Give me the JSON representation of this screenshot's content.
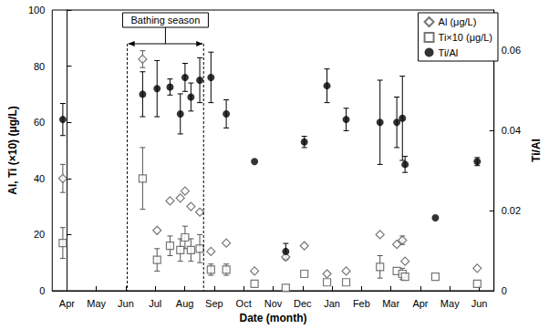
{
  "chart_data": {
    "type": "scatter",
    "x_label": "Date (month)",
    "y_label": "Al, Ti (×10) (μg/L)",
    "y2_label": "Ti/Al",
    "x": [
      -0.14,
      2.57,
      3.06,
      3.5,
      3.85,
      4.01,
      4.21,
      4.51,
      4.89,
      5.41,
      6.37,
      7.43,
      8.06,
      8.83,
      9.48,
      10.63,
      11.2,
      11.39,
      11.48,
      12.51,
      13.93
    ],
    "xlim": [
      -0.5,
      14.5
    ],
    "xticks": [
      {
        "value": 0,
        "label": "Apr"
      },
      {
        "value": 1,
        "label": "May"
      },
      {
        "value": 2,
        "label": "Jun"
      },
      {
        "value": 3,
        "label": "Jul"
      },
      {
        "value": 4,
        "label": "Aug"
      },
      {
        "value": 5,
        "label": "Sep"
      },
      {
        "value": 6,
        "label": "Oct"
      },
      {
        "value": 7,
        "label": "Nov"
      },
      {
        "value": 8,
        "label": "Dec"
      },
      {
        "value": 9,
        "label": "Jan"
      },
      {
        "value": 10,
        "label": "Feb"
      },
      {
        "value": 11,
        "label": "Mar"
      },
      {
        "value": 12,
        "label": "Apr"
      },
      {
        "value": 13,
        "label": "May"
      },
      {
        "value": 14,
        "label": "Jun"
      }
    ],
    "ylim": [
      0,
      100
    ],
    "yticks": [
      0,
      20,
      40,
      60,
      80,
      100
    ],
    "y2lim": [
      0,
      0.07
    ],
    "y2ticks": [
      0,
      0.02,
      0.04,
      0.06
    ],
    "grid": false,
    "legend": "upper right",
    "annotations": [
      {
        "text": "Bathing season",
        "x": [
          2.05,
          4.64
        ]
      }
    ],
    "series": [
      {
        "name": "Al (μg/L)",
        "color": "#555555",
        "marker": "diamond_open",
        "values": [
          40,
          82.5,
          21.5,
          32,
          33,
          35.5,
          30,
          28,
          14,
          17,
          7,
          12,
          16,
          6,
          7,
          20,
          16.5,
          18,
          10.5,
          null,
          8
        ],
        "errors": [
          5,
          3,
          null,
          null,
          null,
          null,
          null,
          null,
          null,
          null,
          null,
          null,
          null,
          null,
          null,
          null,
          null,
          1.5,
          null,
          null,
          null
        ]
      },
      {
        "name": "Ti×10 (μg/L)",
        "color": "#555555",
        "marker": "square_open",
        "values": [
          17,
          40,
          11,
          16,
          14.5,
          19,
          14.5,
          15,
          7.5,
          7.5,
          2.5,
          1,
          6,
          3,
          3,
          8.5,
          7,
          6,
          5,
          5,
          2.5
        ],
        "errors": [
          5.5,
          11,
          4,
          3.5,
          4,
          4,
          4,
          5,
          2,
          2,
          null,
          null,
          null,
          null,
          null,
          4,
          null,
          2,
          null,
          null,
          null
        ]
      },
      {
        "name": "Ti/Al",
        "color": "#000000",
        "marker": "circle",
        "axis": "y2",
        "values": [
          0.0427,
          0.049,
          0.0504,
          0.0508,
          0.0441,
          0.0532,
          0.0483,
          0.0525,
          0.0532,
          0.0441,
          0.0322,
          0.0098,
          0.0371,
          0.0511,
          0.0427,
          0.042,
          0.042,
          0.043,
          0.0315,
          0.0182,
          0.0322
        ],
        "errors": [
          0.004,
          0.0056,
          0.007,
          0.002,
          0.005,
          0.0035,
          0.0035,
          0.0056,
          0.0063,
          0.0035,
          null,
          0.002,
          0.0014,
          0.0042,
          0.0028,
          0.0105,
          0.0063,
          0.0105,
          0.002,
          null,
          0.001
        ]
      }
    ]
  }
}
